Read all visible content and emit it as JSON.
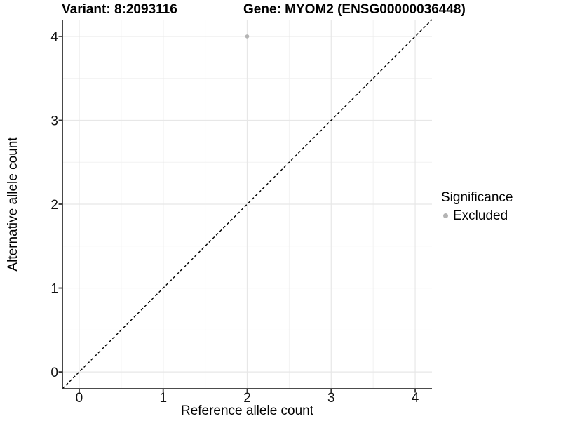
{
  "header": {
    "variant_title": "Variant: 8:2093116",
    "gene_title": "Gene: MYOM2 (ENSG00000036448)"
  },
  "axes": {
    "x_label": "Reference allele count",
    "y_label": "Alternative allele count"
  },
  "legend": {
    "title": "Significance",
    "items": [
      {
        "label": "Excluded",
        "color": "#b4b4b4",
        "marker": "dot-icon"
      }
    ]
  },
  "chart_data": {
    "type": "scatter",
    "title": "Variant: 8:2093116  Gene: MYOM2 (ENSG00000036448)",
    "xlabel": "Reference allele count",
    "ylabel": "Alternative allele count",
    "xlim": [
      -0.2,
      4.2
    ],
    "ylim": [
      -0.2,
      4.2
    ],
    "x_ticks": [
      0,
      1,
      2,
      3,
      4
    ],
    "y_ticks": [
      0,
      1,
      2,
      3,
      4
    ],
    "x_minor": [
      0.5,
      1.5,
      2.5,
      3.5
    ],
    "y_minor": [
      0.5,
      1.5,
      2.5,
      3.5
    ],
    "grid": "major+minor",
    "legend_position": "right",
    "reference_line": {
      "type": "identity",
      "style": "dashed",
      "from": [
        -0.2,
        -0.2
      ],
      "to": [
        4.2,
        4.2
      ]
    },
    "series": [
      {
        "name": "Excluded",
        "color": "#b4b4b4",
        "marker": "circle",
        "size": 2.8,
        "points": [
          [
            2,
            4
          ]
        ]
      }
    ]
  },
  "style": {
    "background": "#ffffff",
    "grid_major_color": "#e7e7e7",
    "grid_minor_color": "#f2f2f2",
    "axis_color": "#333333",
    "tick_label_color": "#111111",
    "text_color": "#000000",
    "point_color": "#b4b4b4",
    "reference_line_color": "#000000"
  }
}
